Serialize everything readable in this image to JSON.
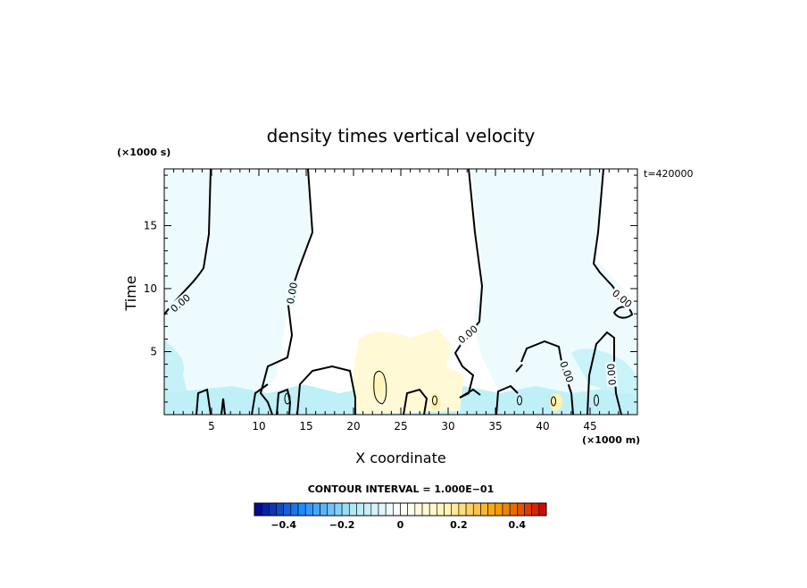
{
  "chart_data": {
    "type": "heatmap",
    "title": "density times vertical velocity",
    "xlabel": "X coordinate",
    "ylabel": "Time",
    "x_unit": "(×1000 m)",
    "y_unit": "(×1000 s)",
    "time_annotation": "t=420000",
    "xlim": [
      0,
      50
    ],
    "ylim": [
      0,
      19.5
    ],
    "x_ticks": [
      5,
      10,
      15,
      20,
      25,
      30,
      35,
      40,
      45
    ],
    "y_ticks": [
      5,
      10,
      15
    ],
    "contour_interval_text": "CONTOUR INTERVAL = 1.000E−01",
    "contour_labels": [
      "0.00",
      "0.00",
      "0.00",
      "0.00",
      "0.00",
      "0.00"
    ],
    "colorbar": {
      "range": [
        -0.5,
        0.5
      ],
      "tick_values": [
        -0.4,
        -0.2,
        0,
        0.2,
        0.4
      ],
      "tick_labels": [
        "−0.4",
        "−0.2",
        "0",
        "0.2",
        "0.4"
      ],
      "colors_low_to_high": [
        "#00008b",
        "#1e90ff",
        "#aee8f5",
        "#ffffff",
        "#fff4b0",
        "#f5a000",
        "#cc0000"
      ]
    },
    "regions": [
      {
        "value": -0.05,
        "x": [
          0,
          13
        ],
        "y": [
          5,
          19.5
        ]
      },
      {
        "value": -0.05,
        "x": [
          31,
          50
        ],
        "y": [
          5,
          19.5
        ]
      },
      {
        "value": 0.05,
        "x": [
          20,
          30
        ],
        "y": [
          0,
          6
        ]
      },
      {
        "value": 0.15,
        "x": [
          22,
          23.5
        ],
        "y": [
          0.5,
          3
        ]
      },
      {
        "value": -0.1,
        "x": [
          0,
          50
        ],
        "y": [
          0,
          2
        ]
      }
    ]
  }
}
